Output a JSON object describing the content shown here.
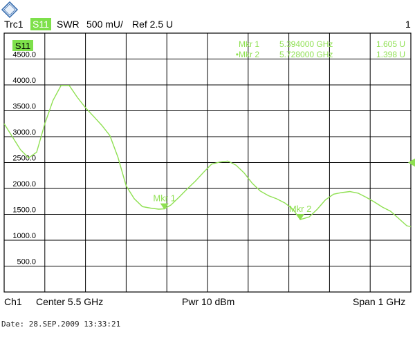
{
  "header": {
    "trace": "Trc1",
    "measurement": "S11",
    "format": "SWR",
    "scale": "500 mU/",
    "reference": "Ref 2.5 U",
    "channel_index": "1"
  },
  "footer": {
    "channel": "Ch1",
    "center": "Center  5.5 GHz",
    "power": "Pwr  10 dBm",
    "span": "Span  1 GHz"
  },
  "date_line": "Date: 28.SEP.2009  13:33:21",
  "logo_text": "R&S",
  "colors": {
    "trace": "#8fe052",
    "badge": "#7ee04b",
    "grid": "#000000",
    "background": "#ffffff"
  },
  "markers": [
    {
      "name": "Mkr 1",
      "freq": "5.394000  GHz",
      "value": "1.605  U",
      "active": false,
      "x": 5.394,
      "y": 1605
    },
    {
      "name": "Mkr 2",
      "freq": "5.728000  GHz",
      "value": "1.398  U",
      "active": true,
      "x": 5.728,
      "y": 1398
    }
  ],
  "chart_data": {
    "type": "line",
    "xlim": [
      5.0,
      6.0
    ],
    "ylim": [
      0,
      5000
    ],
    "x_divisions": 10,
    "y_divisions": 10,
    "grid": true,
    "trace_label": "S11",
    "yticks": [
      500,
      1000,
      1500,
      2000,
      2500,
      3000,
      3500,
      4000,
      4500
    ],
    "ytick_labels": [
      "500.0",
      "1000.0",
      "1500.0",
      "2000.0",
      "2500.0",
      "3000.0",
      "3500.0",
      "4000.0",
      "4500.0"
    ],
    "reference_value": 2500,
    "x": [
      5.0,
      5.02,
      5.04,
      5.06,
      5.08,
      5.1,
      5.12,
      5.14,
      5.16,
      5.18,
      5.2,
      5.22,
      5.24,
      5.26,
      5.28,
      5.3,
      5.32,
      5.34,
      5.36,
      5.38,
      5.394,
      5.41,
      5.43,
      5.45,
      5.47,
      5.49,
      5.51,
      5.53,
      5.55,
      5.57,
      5.59,
      5.61,
      5.63,
      5.65,
      5.67,
      5.69,
      5.71,
      5.728,
      5.75,
      5.77,
      5.79,
      5.81,
      5.83,
      5.85,
      5.87,
      5.89,
      5.91,
      5.93,
      5.95,
      5.97,
      5.99,
      6.0
    ],
    "y": [
      3250,
      3000,
      2750,
      2590,
      2700,
      3250,
      3700,
      3990,
      3990,
      3760,
      3560,
      3390,
      3220,
      3020,
      2600,
      2050,
      1800,
      1650,
      1620,
      1600,
      1605,
      1680,
      1830,
      1990,
      2140,
      2310,
      2470,
      2510,
      2530,
      2450,
      2300,
      2100,
      1950,
      1860,
      1800,
      1720,
      1600,
      1398,
      1450,
      1600,
      1780,
      1890,
      1920,
      1940,
      1910,
      1830,
      1740,
      1640,
      1560,
      1420,
      1280,
      1260
    ]
  }
}
